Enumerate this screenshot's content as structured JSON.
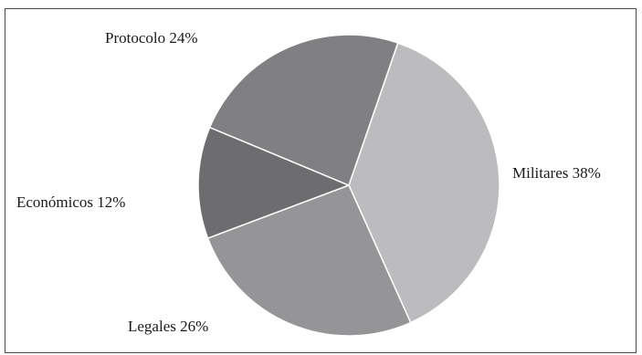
{
  "chart_data": {
    "type": "pie",
    "title": "",
    "slices": [
      {
        "label": "Militares",
        "value": 38,
        "display": "Militares 38%",
        "color": "#bcbcbe"
      },
      {
        "label": "Legales",
        "value": 26,
        "display": "Legales 26%",
        "color": "#959597"
      },
      {
        "label": "Económicos",
        "value": 12,
        "display": "Económicos 12%",
        "color": "#6d6d70"
      },
      {
        "label": "Protocolo",
        "value": 24,
        "display": "Protocolo 24%",
        "color": "#808083"
      }
    ],
    "legend": "none",
    "slice_border_color": "#ffffff"
  }
}
